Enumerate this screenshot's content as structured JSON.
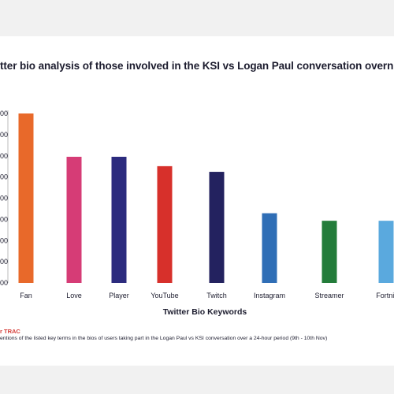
{
  "page": {
    "title": "tter bio analysis of those involved in the KSI vs Logan Paul conversation overnight",
    "source": "r TRAC",
    "note": "entions of the listed key terms in the bios of users taking part in the Logan Paul vs KSI conversation over a 24-hour period (9th - 10th Nov)"
  },
  "chart_data": {
    "type": "bar",
    "title": "tter bio analysis of those involved in the KSI vs Logan Paul conversation overnight",
    "xlabel": "Twitter Bio Keywords",
    "ylabel": "",
    "categories": [
      "Fan",
      "Love",
      "Player",
      "YouTube",
      "Twitch",
      "Instagram",
      "Streamer",
      "Fortnit"
    ],
    "values": [
      90,
      67,
      67,
      62,
      59,
      37,
      33,
      33
    ],
    "colors": [
      "#e8692a",
      "#d63c76",
      "#2c2b7e",
      "#d7302b",
      "#23225f",
      "#2f6eb6",
      "#237c3a",
      "#5aa9de"
    ],
    "ytick_labels": [
      "00",
      "00",
      "00",
      "00",
      "00",
      "00",
      "00",
      "00",
      "00"
    ],
    "ylim": [
      0,
      90
    ],
    "grid": false,
    "legend": "none"
  }
}
